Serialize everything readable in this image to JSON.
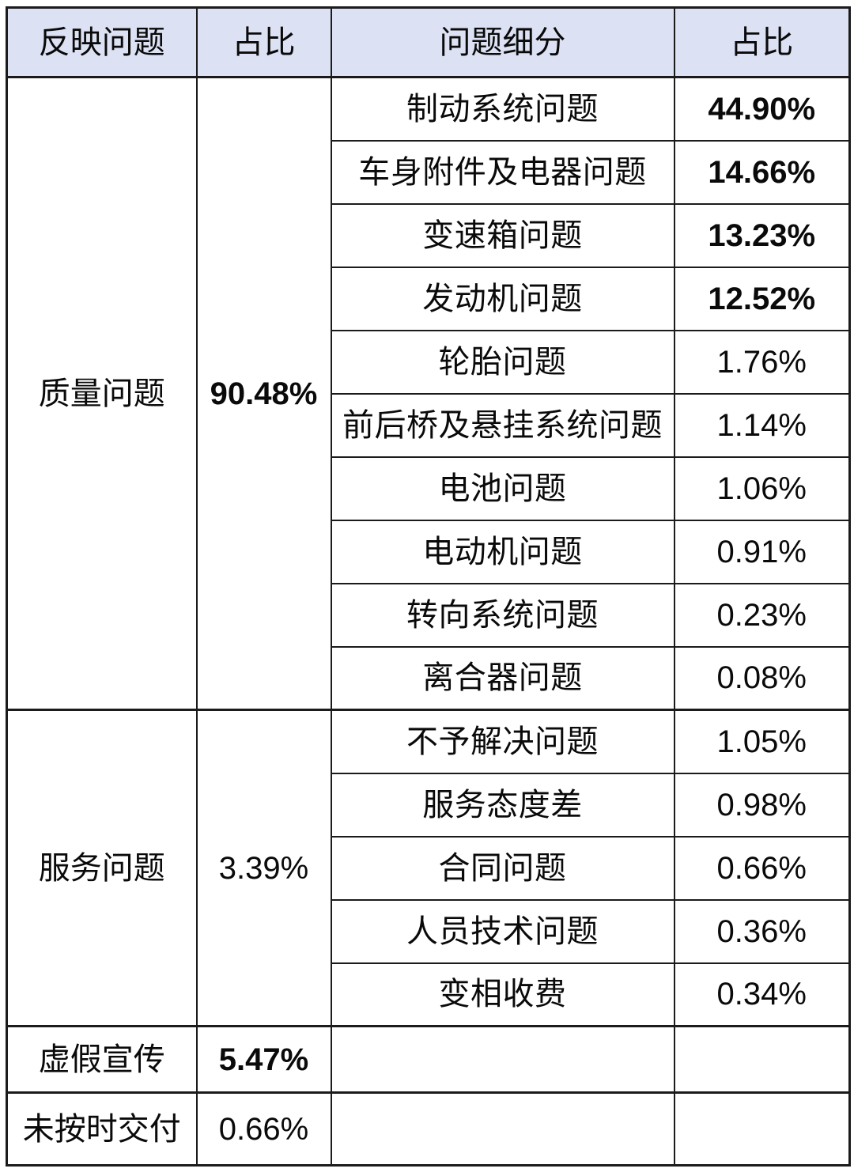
{
  "colors": {
    "header_bg": "#dce2f3",
    "border": "#1b1b1b",
    "text": "#0a0a0a",
    "page_bg": "#ffffff"
  },
  "table": {
    "header": [
      "反映问题",
      "占比",
      "问题细分",
      "占比"
    ],
    "sections": [
      {
        "category": "质量问题",
        "share": "90.48%",
        "share_bold": true,
        "details": [
          {
            "label": "制动系统问题",
            "share": "44.90%",
            "bold": true
          },
          {
            "label": "车身附件及电器问题",
            "share": "14.66%",
            "bold": true
          },
          {
            "label": "变速箱问题",
            "share": "13.23%",
            "bold": true
          },
          {
            "label": "发动机问题",
            "share": "12.52%",
            "bold": true
          },
          {
            "label": "轮胎问题",
            "share": "1.76%",
            "bold": false
          },
          {
            "label": "前后桥及悬挂系统问题",
            "share": "1.14%",
            "bold": false
          },
          {
            "label": "电池问题",
            "share": "1.06%",
            "bold": false
          },
          {
            "label": "电动机问题",
            "share": "0.91%",
            "bold": false
          },
          {
            "label": "转向系统问题",
            "share": "0.23%",
            "bold": false
          },
          {
            "label": "离合器问题",
            "share": "0.08%",
            "bold": false
          }
        ]
      },
      {
        "category": "服务问题",
        "share": "3.39%",
        "share_bold": false,
        "details": [
          {
            "label": "不予解决问题",
            "share": "1.05%",
            "bold": false
          },
          {
            "label": "服务态度差",
            "share": "0.98%",
            "bold": false
          },
          {
            "label": "合同问题",
            "share": "0.66%",
            "bold": false
          },
          {
            "label": "人员技术问题",
            "share": "0.36%",
            "bold": false
          },
          {
            "label": "变相收费",
            "share": "0.34%",
            "bold": false
          }
        ]
      },
      {
        "category": "虚假宣传",
        "share": "5.47%",
        "share_bold": true,
        "details": []
      },
      {
        "category": "未按时交付",
        "share": "0.66%",
        "share_bold": false,
        "details": []
      }
    ]
  },
  "chart_data": {
    "type": "table",
    "columns": [
      "反映问题",
      "占比",
      "问题细分",
      "占比"
    ],
    "rows": [
      [
        "质量问题",
        "90.48%",
        "制动系统问题",
        "44.90%"
      ],
      [
        "",
        "",
        "车身附件及电器问题",
        "14.66%"
      ],
      [
        "",
        "",
        "变速箱问题",
        "13.23%"
      ],
      [
        "",
        "",
        "发动机问题",
        "12.52%"
      ],
      [
        "",
        "",
        "轮胎问题",
        "1.76%"
      ],
      [
        "",
        "",
        "前后桥及悬挂系统问题",
        "1.14%"
      ],
      [
        "",
        "",
        "电池问题",
        "1.06%"
      ],
      [
        "",
        "",
        "电动机问题",
        "0.91%"
      ],
      [
        "",
        "",
        "转向系统问题",
        "0.23%"
      ],
      [
        "",
        "",
        "离合器问题",
        "0.08%"
      ],
      [
        "服务问题",
        "3.39%",
        "不予解决问题",
        "1.05%"
      ],
      [
        "",
        "",
        "服务态度差",
        "0.98%"
      ],
      [
        "",
        "",
        "合同问题",
        "0.66%"
      ],
      [
        "",
        "",
        "人员技术问题",
        "0.36%"
      ],
      [
        "",
        "",
        "变相收费",
        "0.34%"
      ],
      [
        "虚假宣传",
        "5.47%",
        "",
        ""
      ],
      [
        "未按时交付",
        "0.66%",
        "",
        ""
      ]
    ]
  }
}
